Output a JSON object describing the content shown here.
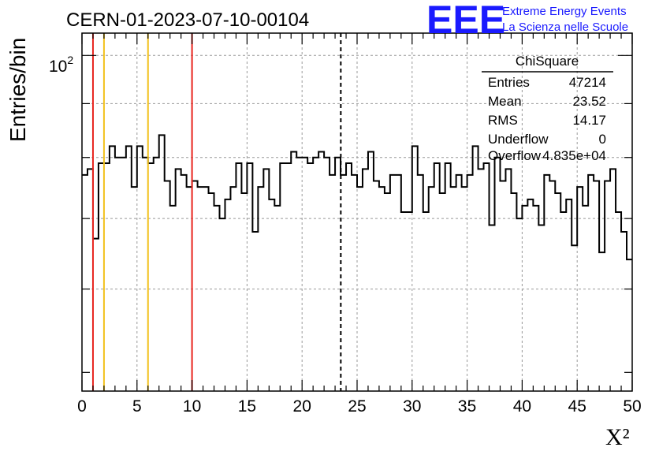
{
  "header": {
    "run_title": "CERN-01-2023-07-10-00104",
    "logo": "EEE",
    "logo_line1": "Extreme Energy Events",
    "logo_line2": "La Scienza nelle Scuole",
    "brand_color": "#1a1aff"
  },
  "stats_box": {
    "title": "ChiSquare",
    "rows": [
      {
        "label": "Entries",
        "value": "47214"
      },
      {
        "label": "Mean",
        "value": "23.52"
      },
      {
        "label": "RMS",
        "value": "14.17"
      },
      {
        "label": "Underflow",
        "value": "0"
      },
      {
        "label": "Overflow",
        "value": "4.835e+04"
      }
    ]
  },
  "chart_data": {
    "type": "histogram",
    "title": "CERN-01-2023-07-10-00104",
    "xlabel": "X²",
    "ylabel": "Entries/bin",
    "xlim": [
      0,
      50
    ],
    "ylim": [
      48,
      105
    ],
    "y_scale": "log",
    "grid": true,
    "x_ticks": [
      "0",
      "5",
      "10",
      "15",
      "20",
      "25",
      "30",
      "35",
      "40",
      "45",
      "50"
    ],
    "y_tick_labels": [
      "10",
      "2"
    ],
    "bin_width": 0.5,
    "values": [
      77,
      78,
      67,
      79,
      79,
      82,
      80,
      80,
      82,
      75,
      82,
      80,
      79,
      80,
      84,
      76,
      72,
      78,
      77,
      75,
      76,
      75,
      75,
      74,
      72,
      70,
      73,
      75,
      79,
      74,
      79,
      68,
      75,
      78,
      73,
      72,
      79,
      79,
      81,
      80,
      80,
      79,
      80,
      81,
      80,
      77,
      80,
      77,
      79,
      77,
      75,
      78,
      81,
      76,
      75,
      74,
      77,
      77,
      71,
      71,
      82,
      77,
      71,
      75,
      79,
      74,
      79,
      75,
      77,
      75,
      77,
      82,
      78,
      79,
      69,
      80,
      76,
      78,
      74,
      70,
      72,
      73,
      72,
      69,
      77,
      76,
      74,
      71,
      73,
      66,
      75,
      72,
      77,
      76,
      65,
      76,
      78,
      71,
      68,
      64
    ],
    "vertical_lines": [
      {
        "x": 1,
        "color": "#e8241e",
        "style": "solid"
      },
      {
        "x": 2,
        "color": "#f2c21e",
        "style": "solid"
      },
      {
        "x": 6,
        "color": "#f2c21e",
        "style": "solid"
      },
      {
        "x": 10,
        "color": "#e8241e",
        "style": "solid"
      },
      {
        "x": 23.52,
        "color": "#000000",
        "style": "dashed"
      }
    ]
  }
}
